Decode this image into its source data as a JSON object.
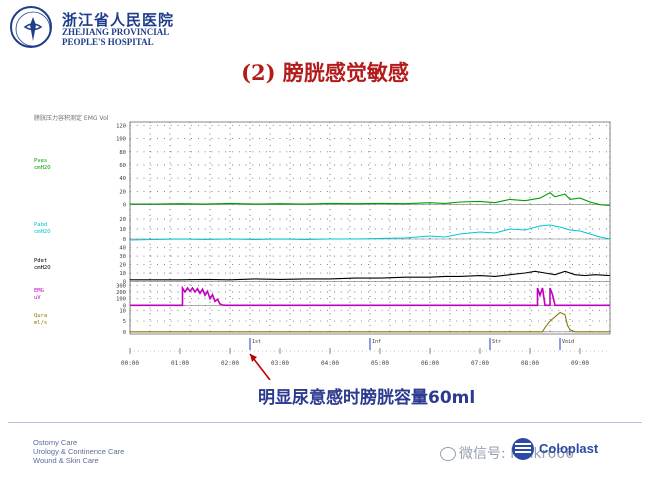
{
  "header": {
    "hospital_cn": "浙江省人民医院",
    "hospital_en_line1": "ZHEJIANG PROVINCIAL",
    "hospital_en_line2": "PEOPLE'S HOSPITAL"
  },
  "slide": {
    "title": "(2) 膀胱感觉敏感",
    "caption": "明显尿意感时膀胱容量60ml"
  },
  "footer": {
    "links": [
      "Ostomy Care",
      "Urology & Continence Care",
      "Wound & Skin Care"
    ],
    "watermark": "微信号: Hinkr666",
    "brand": "Coloplast"
  },
  "colors": {
    "title": "#b31b1b",
    "caption": "#2c3a8f",
    "pves": "#00a000",
    "pabd": "#00c8d2",
    "pdet": "#000000",
    "emg": "#c000c0",
    "qura": "#8a7a00",
    "arrow": "#c00000"
  },
  "chart_data": {
    "type": "line",
    "title": "",
    "x_ticks": [
      "00:00",
      "01:00",
      "02:00",
      "03:00",
      "04:00",
      "05:00",
      "06:00",
      "07:00",
      "08:00",
      "09:00"
    ],
    "x_domain": [
      0,
      9.6
    ],
    "marker_ticks": [
      {
        "x": 2.4,
        "label": "1st"
      },
      {
        "x": 4.8,
        "label": "Inf"
      },
      {
        "x": 7.2,
        "label": "Str"
      },
      {
        "x": 8.6,
        "label": "Void"
      }
    ],
    "arrow_at": 2.4,
    "channels": [
      {
        "key": "pves",
        "label": "Pves",
        "unit": "cmH2O",
        "ticks": [
          0,
          20,
          40,
          60,
          80,
          100,
          120
        ],
        "range": [
          -5,
          125
        ],
        "points": [
          [
            0,
            1
          ],
          [
            0.5,
            1
          ],
          [
            1,
            1.5
          ],
          [
            1.5,
            1
          ],
          [
            2,
            2
          ],
          [
            2.5,
            1
          ],
          [
            3,
            1.5
          ],
          [
            3.5,
            1
          ],
          [
            4,
            2
          ],
          [
            4.5,
            1.5
          ],
          [
            5,
            2
          ],
          [
            5.5,
            1.5
          ],
          [
            6,
            3
          ],
          [
            6.3,
            2
          ],
          [
            6.6,
            4
          ],
          [
            7,
            5
          ],
          [
            7.3,
            3
          ],
          [
            7.6,
            8
          ],
          [
            7.9,
            6
          ],
          [
            8.2,
            10
          ],
          [
            8.4,
            18
          ],
          [
            8.5,
            12
          ],
          [
            8.7,
            16
          ],
          [
            8.8,
            8
          ],
          [
            9.0,
            10
          ],
          [
            9.2,
            4
          ],
          [
            9.4,
            0
          ],
          [
            9.6,
            -1
          ]
        ]
      },
      {
        "key": "pabd",
        "label": "Pabd",
        "unit": "cmH2O",
        "ticks": [
          0,
          10,
          20
        ],
        "range": [
          -5,
          25
        ],
        "points": [
          [
            0,
            -1
          ],
          [
            0.5,
            -0.5
          ],
          [
            1,
            0
          ],
          [
            1.5,
            -0.5
          ],
          [
            2,
            0
          ],
          [
            2.5,
            -0.5
          ],
          [
            3,
            0
          ],
          [
            3.5,
            -0.5
          ],
          [
            4,
            0
          ],
          [
            4.5,
            0
          ],
          [
            5,
            0.5
          ],
          [
            5.5,
            1
          ],
          [
            6,
            3
          ],
          [
            6.3,
            2
          ],
          [
            6.6,
            5
          ],
          [
            7,
            7
          ],
          [
            7.3,
            6
          ],
          [
            7.6,
            10
          ],
          [
            7.9,
            9
          ],
          [
            8.2,
            13
          ],
          [
            8.4,
            14
          ],
          [
            8.6,
            12
          ],
          [
            8.8,
            9
          ],
          [
            9.0,
            8
          ],
          [
            9.2,
            5
          ],
          [
            9.4,
            2
          ],
          [
            9.6,
            0
          ]
        ]
      },
      {
        "key": "pdet",
        "label": "Pdet",
        "unit": "cmH2O",
        "ticks": [
          0,
          10,
          20,
          30,
          40
        ],
        "range": [
          -3,
          42
        ],
        "points": [
          [
            0,
            2
          ],
          [
            0.5,
            2
          ],
          [
            1,
            2
          ],
          [
            1.5,
            2.5
          ],
          [
            2,
            2
          ],
          [
            2.5,
            3
          ],
          [
            3,
            2.5
          ],
          [
            3.5,
            3
          ],
          [
            4,
            3
          ],
          [
            4.5,
            4
          ],
          [
            5,
            4
          ],
          [
            5.5,
            5
          ],
          [
            6,
            5
          ],
          [
            6.3,
            6
          ],
          [
            6.6,
            6
          ],
          [
            7,
            7
          ],
          [
            7.3,
            6
          ],
          [
            7.6,
            8
          ],
          [
            7.9,
            10
          ],
          [
            8.1,
            12
          ],
          [
            8.3,
            10
          ],
          [
            8.5,
            8
          ],
          [
            8.7,
            12
          ],
          [
            8.9,
            8
          ],
          [
            9.1,
            7
          ],
          [
            9.3,
            8
          ],
          [
            9.6,
            7
          ]
        ]
      },
      {
        "key": "emg",
        "label": "EMG",
        "unit": "uV",
        "ticks": [
          0,
          100,
          200,
          300
        ],
        "range": [
          -10,
          320
        ],
        "points": [
          [
            0,
            0
          ],
          [
            1.05,
            0
          ],
          [
            1.05,
            260
          ],
          [
            1.1,
            200
          ],
          [
            1.15,
            260
          ],
          [
            1.2,
            210
          ],
          [
            1.25,
            260
          ],
          [
            1.3,
            200
          ],
          [
            1.35,
            250
          ],
          [
            1.4,
            180
          ],
          [
            1.45,
            240
          ],
          [
            1.5,
            150
          ],
          [
            1.55,
            210
          ],
          [
            1.6,
            100
          ],
          [
            1.65,
            160
          ],
          [
            1.7,
            60
          ],
          [
            1.75,
            90
          ],
          [
            1.8,
            20
          ],
          [
            1.85,
            5
          ],
          [
            1.9,
            0
          ],
          [
            8.15,
            0
          ],
          [
            8.15,
            260
          ],
          [
            8.2,
            150
          ],
          [
            8.25,
            260
          ],
          [
            8.3,
            0
          ],
          [
            8.4,
            0
          ],
          [
            8.4,
            260
          ],
          [
            8.45,
            160
          ],
          [
            8.5,
            0
          ],
          [
            9.6,
            0
          ]
        ]
      },
      {
        "key": "qura",
        "label": "Qura",
        "unit": "ml/s",
        "ticks": [
          0,
          5,
          10
        ],
        "range": [
          -1,
          12
        ],
        "points": [
          [
            0,
            0
          ],
          [
            8.25,
            0
          ],
          [
            8.3,
            2
          ],
          [
            8.4,
            5
          ],
          [
            8.5,
            7
          ],
          [
            8.6,
            9
          ],
          [
            8.7,
            8
          ],
          [
            8.75,
            3
          ],
          [
            8.8,
            1
          ],
          [
            8.9,
            0
          ],
          [
            9.6,
            0
          ]
        ]
      }
    ],
    "header_text": "膀胱压力容积测定 EMG  Vol"
  }
}
